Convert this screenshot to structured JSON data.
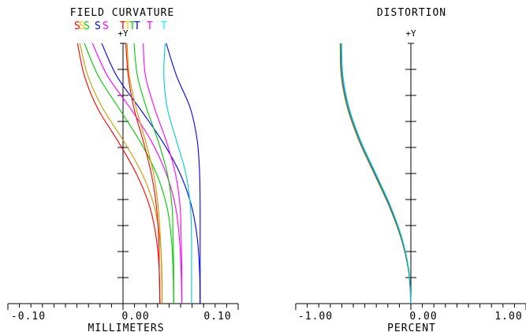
{
  "chart_data": [
    {
      "type": "line",
      "title": "FIELD CURVATURE",
      "xlabel": "MILLIMETERS",
      "ylabel": "+Y",
      "xlim": [
        -0.1,
        0.1
      ],
      "ylim": [
        0,
        1
      ],
      "x_ticks": [
        "-0.10",
        "0.00",
        "0.10"
      ],
      "legend": [
        {
          "text": "S",
          "color": "#ff0000"
        },
        {
          "text": "S",
          "color": "#ffcc00"
        },
        {
          "text": "S",
          "color": "#00cc00"
        },
        {
          "text": "S",
          "color": "#0000ff"
        },
        {
          "text": "S",
          "color": "#ff00ff"
        },
        {
          "text": "T",
          "color": "#ff0000"
        },
        {
          "text": "T",
          "color": "#ffcc00"
        },
        {
          "text": "T",
          "color": "#00cc00"
        },
        {
          "text": "T",
          "color": "#0000ff"
        },
        {
          "text": "T",
          "color": "#ff00ff"
        },
        {
          "text": "T",
          "color": "#00ffff"
        }
      ],
      "series": [
        {
          "color": "#ff0000",
          "x": [
            -0.0395,
            -0.0335,
            -0.022,
            -0.0045,
            0.0115,
            0.023,
            0.029,
            0.0315,
            0.032
          ],
          "y": [
            1.0,
            0.875,
            0.75,
            0.625,
            0.5,
            0.375,
            0.25,
            0.125,
            0.0
          ]
        },
        {
          "color": "#cc9900",
          "x": [
            -0.0375,
            -0.0305,
            -0.0175,
            0.0005,
            0.0165,
            0.027,
            0.032,
            0.0338,
            0.034
          ],
          "y": [
            1.0,
            0.875,
            0.75,
            0.625,
            0.5,
            0.375,
            0.25,
            0.125,
            0.0
          ]
        },
        {
          "color": "#00cc00",
          "x": [
            -0.0335,
            -0.0215,
            -0.0035,
            0.0145,
            0.029,
            0.038,
            0.042,
            0.0435,
            0.044
          ],
          "y": [
            1.0,
            0.875,
            0.75,
            0.625,
            0.5,
            0.375,
            0.25,
            0.125,
            0.0
          ]
        },
        {
          "color": "#ff00ff",
          "x": [
            -0.0265,
            -0.0135,
            0.0065,
            0.0245,
            0.0375,
            0.0455,
            0.049,
            0.0505,
            0.051
          ],
          "y": [
            1.0,
            0.875,
            0.75,
            0.625,
            0.5,
            0.375,
            0.25,
            0.125,
            0.0
          ]
        },
        {
          "color": "#0000ff",
          "x": [
            -0.0185,
            -0.0055,
            0.0145,
            0.034,
            0.0495,
            0.0595,
            0.0645,
            0.0665,
            0.067
          ],
          "y": [
            1.0,
            0.875,
            0.75,
            0.625,
            0.5,
            0.375,
            0.25,
            0.125,
            0.0
          ]
        },
        {
          "color": "#ff0000",
          "x": [
            0.0025,
            0.0045,
            0.0095,
            0.0175,
            0.0245,
            0.029,
            0.031,
            0.0315,
            0.032
          ],
          "y": [
            1.0,
            0.875,
            0.75,
            0.625,
            0.5,
            0.375,
            0.25,
            0.125,
            0.0
          ]
        },
        {
          "color": "#cc9900",
          "x": [
            0.0035,
            0.0055,
            0.0115,
            0.0195,
            0.0265,
            0.0305,
            0.0325,
            0.0335,
            0.034
          ],
          "y": [
            1.0,
            0.875,
            0.75,
            0.625,
            0.5,
            0.375,
            0.25,
            0.125,
            0.0
          ]
        },
        {
          "color": "#00cc00",
          "x": [
            0.0095,
            0.0125,
            0.0205,
            0.0305,
            0.0385,
            0.0425,
            0.0435,
            0.044,
            0.044
          ],
          "y": [
            1.0,
            0.875,
            0.75,
            0.625,
            0.5,
            0.375,
            0.25,
            0.125,
            0.0
          ]
        },
        {
          "color": "#ff00ff",
          "x": [
            0.0175,
            0.0195,
            0.0275,
            0.0375,
            0.0455,
            0.0495,
            0.0505,
            0.051,
            0.051
          ],
          "y": [
            1.0,
            0.875,
            0.75,
            0.625,
            0.5,
            0.375,
            0.25,
            0.125,
            0.0
          ]
        },
        {
          "color": "#00cccc",
          "x": [
            0.0365,
            0.0355,
            0.0385,
            0.0465,
            0.0545,
            0.0585,
            0.0595,
            0.0595,
            0.0595
          ],
          "y": [
            1.0,
            0.875,
            0.75,
            0.625,
            0.5,
            0.375,
            0.25,
            0.125,
            0.0
          ]
        },
        {
          "color": "#0000ff",
          "x": [
            0.0375,
            0.0465,
            0.0585,
            0.0645,
            0.0665,
            0.067,
            0.067,
            0.067,
            0.067
          ],
          "y": [
            1.0,
            0.875,
            0.75,
            0.625,
            0.5,
            0.375,
            0.25,
            0.125,
            0.0
          ]
        }
      ]
    },
    {
      "type": "line",
      "title": "DISTORTION",
      "xlabel": "PERCENT",
      "ylabel": "+Y",
      "xlim": [
        -1.0,
        1.0
      ],
      "ylim": [
        0,
        1
      ],
      "x_ticks": [
        "-1.00",
        "0.00",
        "1.00"
      ],
      "series": [
        {
          "color": "#808000",
          "x": [
            -0.614,
            -0.605,
            -0.55,
            -0.45,
            -0.32,
            -0.19,
            -0.085,
            -0.02,
            0.0
          ],
          "y": [
            1.0,
            0.875,
            0.75,
            0.625,
            0.5,
            0.375,
            0.25,
            0.125,
            0.0
          ]
        },
        {
          "color": "#3060c0",
          "x": [
            -0.608,
            -0.598,
            -0.542,
            -0.442,
            -0.312,
            -0.183,
            -0.08,
            -0.018,
            0.0
          ],
          "y": [
            1.0,
            0.875,
            0.75,
            0.625,
            0.5,
            0.375,
            0.25,
            0.125,
            0.0
          ]
        },
        {
          "color": "#00cccc",
          "x": [
            -0.602,
            -0.59,
            -0.535,
            -0.435,
            -0.305,
            -0.177,
            -0.076,
            -0.016,
            0.0
          ],
          "y": [
            1.0,
            0.875,
            0.75,
            0.625,
            0.5,
            0.375,
            0.25,
            0.125,
            0.0
          ]
        }
      ]
    }
  ]
}
